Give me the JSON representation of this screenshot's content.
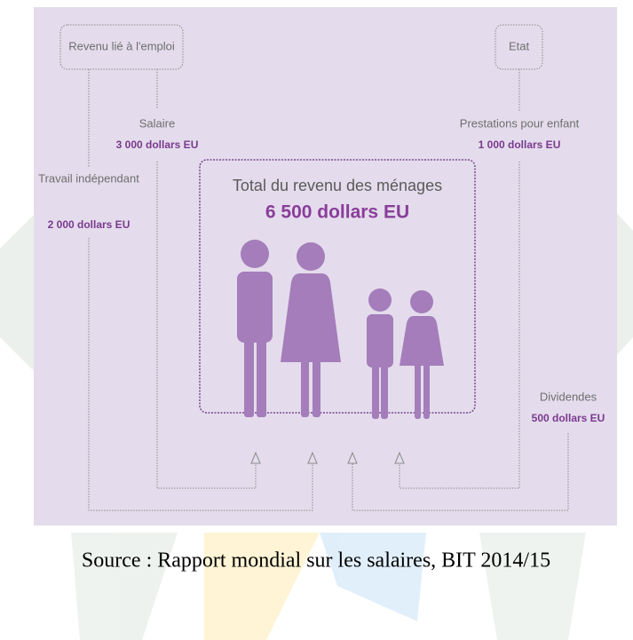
{
  "sources": {
    "employment": {
      "label": "Revenu lié à l'emploi"
    },
    "state": {
      "label": "Etat"
    }
  },
  "flows": [
    {
      "label": "Salaire",
      "amount": "3 000 dollars EU"
    },
    {
      "label": "Travail indépendant",
      "amount": "2 000 dollars EU"
    },
    {
      "label": "Prestations pour enfant",
      "amount": "1 000 dollars EU"
    },
    {
      "label": "Dividendes",
      "amount": "500 dollars EU"
    }
  ],
  "total": {
    "label": "Total du revenu des ménages",
    "amount": "6 500 dollars EU"
  },
  "source_note": "Source : Rapport mondial sur les salaires, BIT 2014/15"
}
